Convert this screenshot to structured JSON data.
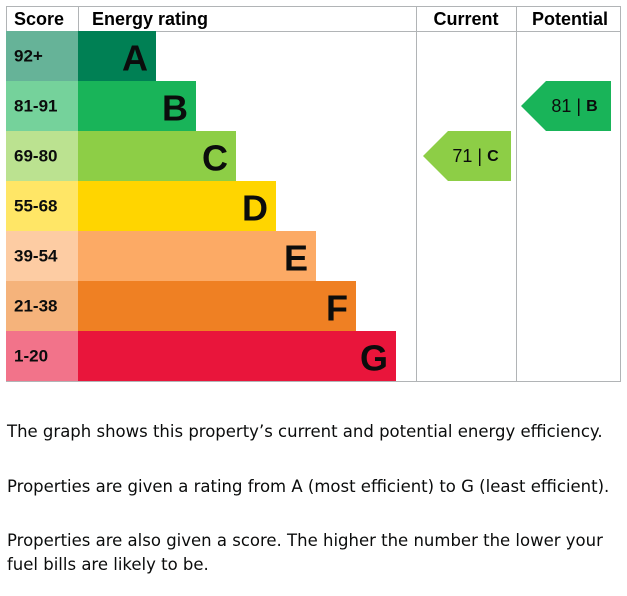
{
  "chart_data": {
    "type": "epc",
    "headers": {
      "score": "Score",
      "rating": "Energy rating",
      "current": "Current",
      "potential": "Potential"
    },
    "bands": [
      {
        "score": "92+",
        "letter": "A",
        "color": "#008054",
        "score_color": "#66b398"
      },
      {
        "score": "81-91",
        "letter": "B",
        "color": "#19b459",
        "score_color": "#75d29b"
      },
      {
        "score": "69-80",
        "letter": "C",
        "color": "#8dce46",
        "score_color": "#bbe290"
      },
      {
        "score": "55-68",
        "letter": "D",
        "color": "#ffd500",
        "score_color": "#ffe666"
      },
      {
        "score": "39-54",
        "letter": "E",
        "color": "#fcaa65",
        "score_color": "#fdcca3"
      },
      {
        "score": "21-38",
        "letter": "F",
        "color": "#ef8023",
        "score_color": "#f5b37b"
      },
      {
        "score": "1-20",
        "letter": "G",
        "color": "#e9153b",
        "score_color": "#f2738a"
      }
    ],
    "current": {
      "value": 71,
      "letter": "C",
      "band": 2
    },
    "potential": {
      "value": 81,
      "letter": "B",
      "band": 1
    },
    "separator": "|"
  },
  "paragraphs": [
    "The graph shows this property’s current and potential energy efficiency.",
    "Properties are given a rating from A (most efficient) to G (least efficient).",
    "Properties are also given a score. The higher the number the lower your fuel bills are likely to be."
  ]
}
